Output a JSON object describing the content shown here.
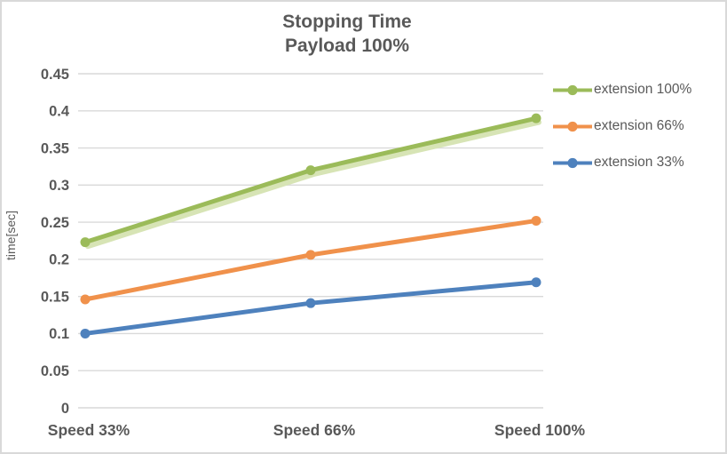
{
  "window": {
    "background_color": "#FFFFFF",
    "border_color": "#D9D9D9"
  },
  "chart_data": {
    "type": "line",
    "title": "Stopping Time",
    "subtitle": "Payload 100%",
    "categories": [
      "Speed 33%",
      "Speed 66%",
      "Speed 100%"
    ],
    "series": [
      {
        "name": "extension 100%",
        "color": "#9BBB59",
        "values": [
          0.223,
          0.32,
          0.39
        ],
        "glow": true,
        "glow_color": "#D7E4B5"
      },
      {
        "name": "extension 66%",
        "color": "#F0914B",
        "values": [
          0.146,
          0.206,
          0.252
        ]
      },
      {
        "name": "extension 33%",
        "color": "#4E81BD",
        "values": [
          0.1,
          0.141,
          0.169
        ]
      }
    ],
    "xlabel": "",
    "ylabel": "time[sec]",
    "ylim": [
      0,
      0.45
    ],
    "ytick_step": 0.05,
    "yticks": [
      "0",
      "0.05",
      "0.1",
      "0.15",
      "0.2",
      "0.25",
      "0.3",
      "0.35",
      "0.4",
      "0.45"
    ],
    "grid": true,
    "gridline_color": "#D9D9D9",
    "legend_position": "right",
    "text_color": "#595959",
    "marker_style": "circle"
  }
}
